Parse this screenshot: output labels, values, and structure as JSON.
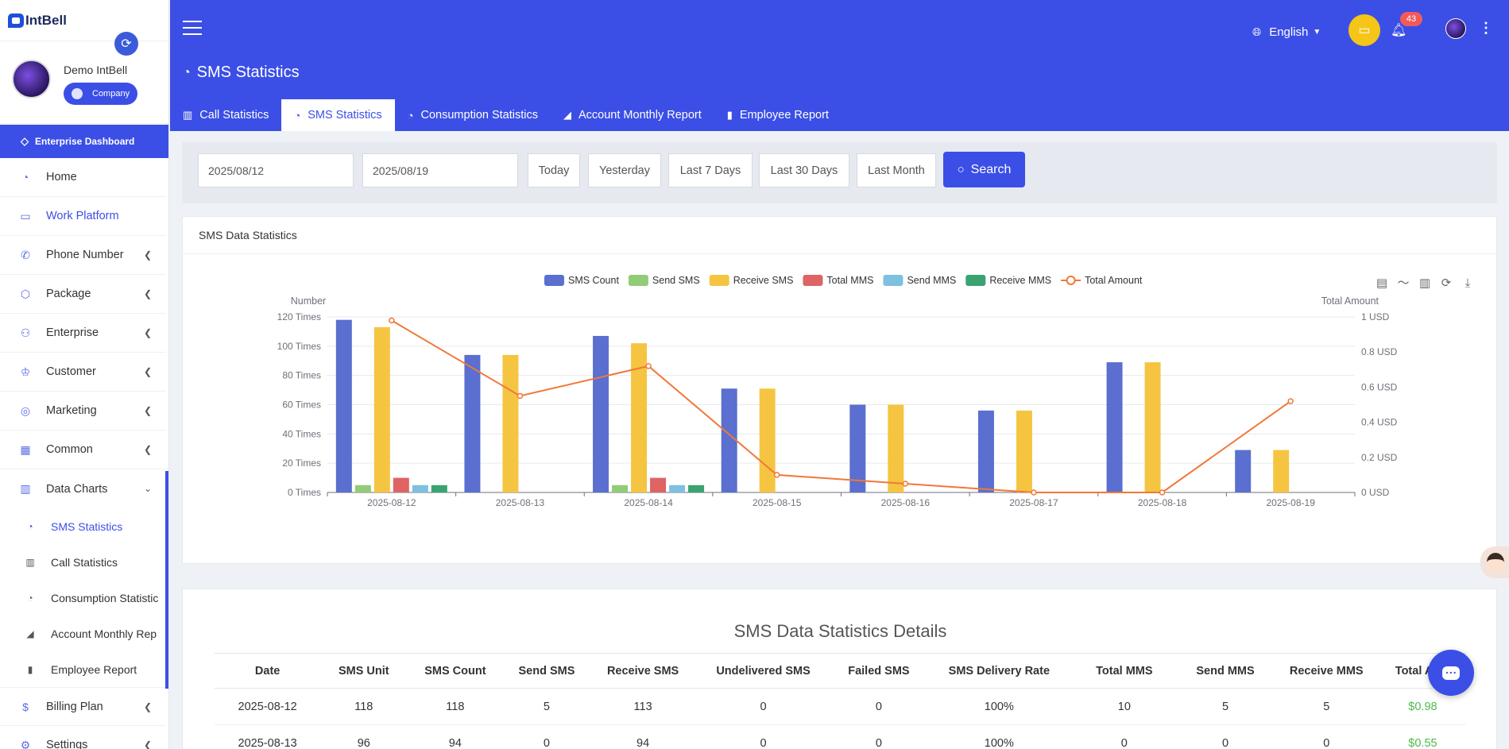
{
  "app": {
    "logo_text": "IntBell"
  },
  "user": {
    "name": "Demo IntBell",
    "role": "Company"
  },
  "sidebar": {
    "enterprise_label": "Enterprise Dashboard",
    "items": [
      {
        "label": "Home",
        "icon": "dashboard-icon"
      },
      {
        "label": "Work Platform",
        "icon": "laptop-icon"
      },
      {
        "label": "Phone Number",
        "icon": "phone-icon"
      },
      {
        "label": "Package",
        "icon": "box-icon"
      },
      {
        "label": "Enterprise",
        "icon": "org-icon"
      },
      {
        "label": "Customer",
        "icon": "crown-icon"
      },
      {
        "label": "Marketing",
        "icon": "target-icon"
      },
      {
        "label": "Common",
        "icon": "grid-icon"
      },
      {
        "label": "Data Charts",
        "icon": "chart-icon"
      }
    ],
    "sub_items": [
      {
        "label": "SMS Statistics"
      },
      {
        "label": "Call Statistics"
      },
      {
        "label": "Consumption Statistic"
      },
      {
        "label": "Account Monthly Rep"
      },
      {
        "label": "Employee Report"
      }
    ],
    "bottom_items": [
      {
        "label": "Billing Plan"
      },
      {
        "label": "Settings"
      }
    ]
  },
  "header": {
    "title": "SMS Statistics",
    "language": "English",
    "notification_count": "43",
    "tabs": [
      {
        "label": "Call Statistics"
      },
      {
        "label": "SMS Statistics"
      },
      {
        "label": "Consumption Statistics"
      },
      {
        "label": "Account Monthly Report"
      },
      {
        "label": "Employee Report"
      }
    ]
  },
  "filter": {
    "start_date": "2025/08/12",
    "end_date": "2025/08/19",
    "buttons": [
      "Today",
      "Yesterday",
      "Last 7 Days",
      "Last 30 Days",
      "Last Month"
    ],
    "search_label": "Search"
  },
  "chart_card": {
    "title": "SMS Data Statistics"
  },
  "chart_data": {
    "type": "bar",
    "ylabel": "Number",
    "ylabel_right": "Total Amount",
    "ylim": [
      0,
      120
    ],
    "ylim_right": [
      0,
      1
    ],
    "y_ticks": [
      "0 Times",
      "20 Times",
      "40 Times",
      "60 Times",
      "80 Times",
      "100 Times",
      "120 Times"
    ],
    "y_ticks_right": [
      "0 USD",
      "0.2 USD",
      "0.4 USD",
      "0.6 USD",
      "0.8 USD",
      "1 USD"
    ],
    "categories": [
      "2025-08-12",
      "2025-08-13",
      "2025-08-14",
      "2025-08-15",
      "2025-08-16",
      "2025-08-17",
      "2025-08-18",
      "2025-08-19"
    ],
    "legend_position": "top-center",
    "series": [
      {
        "name": "SMS Count",
        "type": "bar",
        "color": "#5a6fcf",
        "values": [
          118,
          94,
          107,
          71,
          60,
          56,
          89,
          29
        ]
      },
      {
        "name": "Send SMS",
        "type": "bar",
        "color": "#92cc76",
        "values": [
          5,
          0,
          5,
          0,
          0,
          0,
          0,
          0
        ]
      },
      {
        "name": "Receive SMS",
        "type": "bar",
        "color": "#f5c542",
        "values": [
          113,
          94,
          102,
          71,
          60,
          56,
          89,
          29
        ]
      },
      {
        "name": "Total MMS",
        "type": "bar",
        "color": "#df6464",
        "values": [
          10,
          0,
          10,
          0,
          0,
          0,
          0,
          0
        ]
      },
      {
        "name": "Send MMS",
        "type": "bar",
        "color": "#7ec0e0",
        "values": [
          5,
          0,
          5,
          0,
          0,
          0,
          0,
          0
        ]
      },
      {
        "name": "Receive MMS",
        "type": "bar",
        "color": "#3ba272",
        "values": [
          5,
          0,
          5,
          0,
          0,
          0,
          0,
          0
        ]
      },
      {
        "name": "Total Amount",
        "type": "line",
        "axis": "right",
        "color": "#f07838",
        "values": [
          0.98,
          0.55,
          0.72,
          0.1,
          0.05,
          0,
          0,
          0.52
        ]
      }
    ]
  },
  "table": {
    "title": "SMS Data Statistics Details",
    "columns": [
      "Date",
      "SMS Unit",
      "SMS Count",
      "Send SMS",
      "Receive SMS",
      "Undelivered SMS",
      "Failed SMS",
      "SMS Delivery Rate",
      "Total MMS",
      "Send MMS",
      "Receive MMS",
      "Total Amo"
    ],
    "rows": [
      [
        "2025-08-12",
        "118",
        "118",
        "5",
        "113",
        "0",
        "0",
        "100%",
        "10",
        "5",
        "5",
        "$0.98"
      ],
      [
        "2025-08-13",
        "96",
        "94",
        "0",
        "94",
        "0",
        "0",
        "100%",
        "0",
        "0",
        "0",
        "$0.55"
      ]
    ]
  }
}
